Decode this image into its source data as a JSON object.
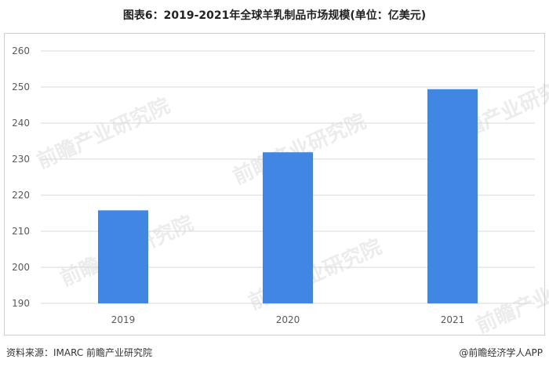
{
  "title": "图表6：2019-2021年全球羊乳制品市场规模(单位：亿美元)",
  "source_text": "资料来源：IMARC 前瞻产业研究院",
  "credit_text": "@前瞻经济学人APP",
  "watermark_text": "前瞻产业研究院",
  "colors": {
    "bar": "#4286e3",
    "grid": "#d9d9d9",
    "axis_text": "#595959"
  },
  "chart_data": {
    "type": "bar",
    "categories": [
      "2019",
      "2020",
      "2021"
    ],
    "values": [
      215.8,
      231.9,
      249.4
    ],
    "ylim": [
      190,
      260
    ],
    "yticks": [
      190,
      200,
      210,
      220,
      230,
      240,
      250,
      260
    ],
    "xlabel": "",
    "ylabel": "",
    "grid": true
  }
}
